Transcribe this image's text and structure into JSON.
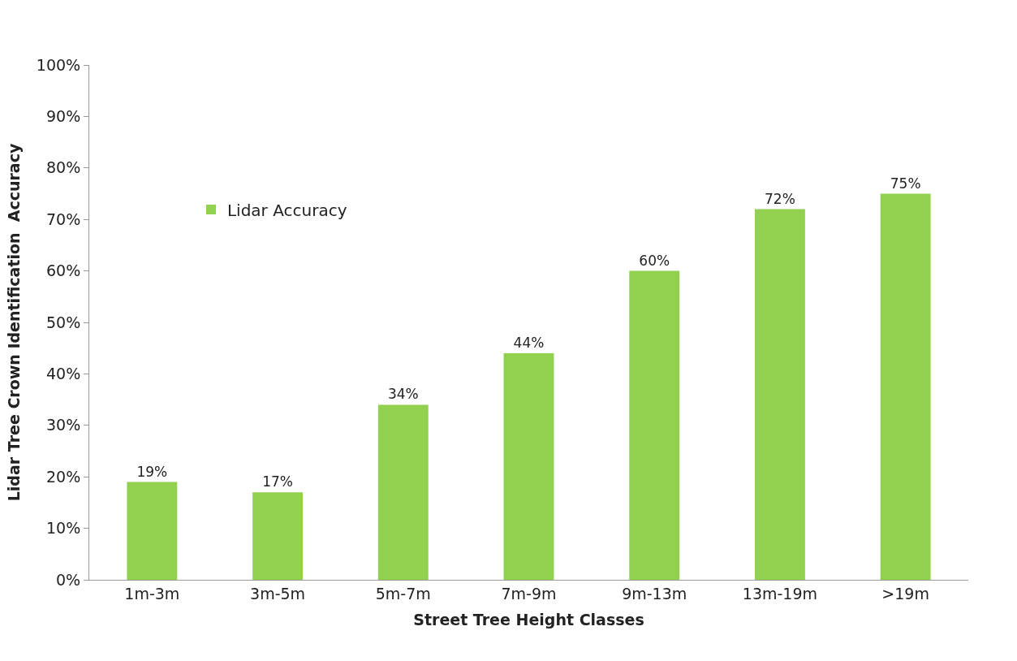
{
  "chart_data": {
    "type": "bar",
    "xlabel": "Street Tree Height Classes",
    "ylabel": "Lidar Tree Crown Identification  Accuracy",
    "categories": [
      "1m-3m",
      "3m-5m",
      "5m-7m",
      "7m-9m",
      "9m-13m",
      "13m-19m",
      ">19m"
    ],
    "series": [
      {
        "name": "Lidar Accuracy",
        "color": "#92d050",
        "values": [
          19,
          17,
          34,
          44,
          60,
          72,
          75
        ],
        "value_labels": [
          "19%",
          "17%",
          "34%",
          "44%",
          "60%",
          "72%",
          "75%"
        ]
      }
    ],
    "ylim": [
      0,
      100
    ],
    "yticks": [
      {
        "value": 0,
        "label": "0%"
      },
      {
        "value": 10,
        "label": "10%"
      },
      {
        "value": 20,
        "label": "20%"
      },
      {
        "value": 30,
        "label": "30%"
      },
      {
        "value": 40,
        "label": "40%"
      },
      {
        "value": 50,
        "label": "50%"
      },
      {
        "value": 60,
        "label": "60%"
      },
      {
        "value": 70,
        "label": "70%"
      },
      {
        "value": 80,
        "label": "80%"
      },
      {
        "value": 90,
        "label": "90%"
      },
      {
        "value": 100,
        "label": "100%"
      }
    ],
    "legend": "top left"
  }
}
